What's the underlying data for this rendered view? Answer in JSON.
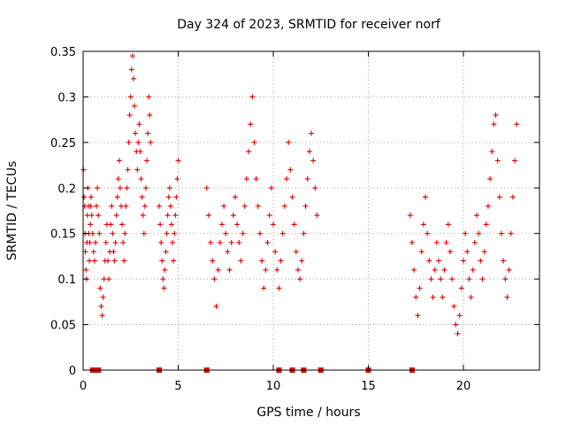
{
  "chart_data": {
    "type": "scatter",
    "title": "Day 324 of 2023, SRMTID for receiver norf",
    "xlabel": "GPS time / hours",
    "ylabel": "SRMTID / TECUs",
    "xlim": [
      0,
      24
    ],
    "ylim": [
      0,
      0.35
    ],
    "xticks": [
      0,
      5,
      10,
      15,
      20
    ],
    "xtick_labels": [
      "0",
      "5",
      "10",
      "15",
      "20"
    ],
    "yticks": [
      0,
      0.05,
      0.1,
      0.15,
      0.2,
      0.25,
      0.3,
      0.35
    ],
    "ytick_labels": [
      "0",
      "0.05",
      "0.1",
      "0.15",
      "0.2",
      "0.25",
      "0.3",
      "0.35"
    ],
    "grid": true,
    "marker": "+",
    "color": "#e00000",
    "series": [
      {
        "x": [
          0.02,
          0.05,
          0.08,
          0.1,
          0.12,
          0.15,
          0.18,
          0.2,
          0.22,
          0.25,
          0.28,
          0.3,
          0.33,
          0.35,
          0.38,
          0.4,
          0.42,
          0.45,
          0.5,
          0.55,
          0.6,
          0.65,
          0.7,
          0.75,
          0.8,
          0.85,
          0.9,
          0.95,
          1.0,
          1.05,
          1.1,
          1.15,
          1.2,
          1.25,
          1.3,
          1.35,
          1.4,
          1.45,
          1.5,
          1.55,
          1.6,
          1.65,
          1.7,
          1.75,
          1.8,
          1.85,
          1.9,
          1.95,
          2.0,
          2.05,
          2.1,
          2.15,
          2.2,
          2.25,
          2.3,
          2.35,
          2.4,
          2.45,
          2.5,
          2.55,
          2.6,
          2.65,
          2.7,
          2.75,
          2.8,
          2.85,
          2.9,
          2.95,
          3.0,
          3.05,
          3.1,
          3.15,
          3.2,
          3.25,
          3.3,
          3.35,
          3.4,
          3.45,
          3.5,
          3.55
        ],
        "y": [
          0.22,
          0.19,
          0.18,
          0.15,
          0.13,
          0.11,
          0.1,
          0.14,
          0.17,
          0.2,
          0.18,
          0.15,
          0.12,
          0.14,
          0.16,
          0.18,
          0.19,
          0.17,
          0.15,
          0.13,
          0.12,
          0.14,
          0.18,
          0.2,
          0.17,
          0.15,
          0.09,
          0.07,
          0.06,
          0.08,
          0.1,
          0.12,
          0.14,
          0.16,
          0.12,
          0.1,
          0.13,
          0.16,
          0.18,
          0.15,
          0.13,
          0.12,
          0.14,
          0.17,
          0.19,
          0.21,
          0.23,
          0.2,
          0.18,
          0.16,
          0.14,
          0.12,
          0.15,
          0.18,
          0.2,
          0.22,
          0.25,
          0.28,
          0.3,
          0.33,
          0.345,
          0.32,
          0.29,
          0.26,
          0.24,
          0.22,
          0.25,
          0.27,
          0.24,
          0.21,
          0.19,
          0.17,
          0.15,
          0.18,
          0.2,
          0.23,
          0.26,
          0.3,
          0.28,
          0.25
        ]
      },
      {
        "x": [
          4.0,
          4.05,
          4.1,
          4.15,
          4.2,
          4.25,
          4.3,
          4.35,
          4.4,
          4.45,
          4.5,
          4.55,
          4.6,
          4.65,
          4.7,
          4.75,
          4.8,
          4.85,
          4.9,
          4.95,
          5.0
        ],
        "y": [
          0.18,
          0.16,
          0.14,
          0.12,
          0.1,
          0.09,
          0.11,
          0.13,
          0.15,
          0.17,
          0.19,
          0.2,
          0.18,
          0.16,
          0.14,
          0.12,
          0.15,
          0.17,
          0.19,
          0.21,
          0.23
        ]
      },
      {
        "x": [
          6.5,
          6.6,
          6.7,
          6.8,
          6.9,
          7.0,
          7.1,
          7.2,
          7.3,
          7.4,
          7.5,
          7.6,
          7.7,
          7.8,
          7.9,
          8.0,
          8.1,
          8.2,
          8.3,
          8.4,
          8.5,
          8.6,
          8.7,
          8.8,
          8.9,
          9.0,
          9.1,
          9.2,
          9.3,
          9.4,
          9.5,
          9.6,
          9.7,
          9.8,
          9.9,
          10.0,
          10.1,
          10.2,
          10.3,
          10.4,
          10.5,
          10.6,
          10.7,
          10.8,
          10.9,
          11.0,
          11.1,
          11.2,
          11.3,
          11.4,
          11.5,
          11.6,
          11.7,
          11.8,
          11.9,
          12.0,
          12.1,
          12.2,
          12.3
        ],
        "y": [
          0.2,
          0.17,
          0.14,
          0.12,
          0.1,
          0.07,
          0.11,
          0.14,
          0.16,
          0.18,
          0.15,
          0.13,
          0.11,
          0.14,
          0.17,
          0.19,
          0.16,
          0.14,
          0.12,
          0.15,
          0.18,
          0.21,
          0.24,
          0.27,
          0.3,
          0.25,
          0.21,
          0.18,
          0.15,
          0.12,
          0.09,
          0.11,
          0.14,
          0.17,
          0.2,
          0.16,
          0.13,
          0.11,
          0.09,
          0.12,
          0.15,
          0.18,
          0.21,
          0.25,
          0.22,
          0.19,
          0.16,
          0.13,
          0.11,
          0.1,
          0.12,
          0.15,
          0.18,
          0.21,
          0.24,
          0.26,
          0.23,
          0.2,
          0.17
        ]
      },
      {
        "x": [
          17.2,
          17.3,
          17.4,
          17.5,
          17.6,
          17.7,
          17.8,
          17.9,
          18.0,
          18.1,
          18.2,
          18.3,
          18.4,
          18.5,
          18.6,
          18.7,
          18.8,
          18.9,
          19.0,
          19.1,
          19.2,
          19.3,
          19.4,
          19.5,
          19.6,
          19.7,
          19.8,
          19.9,
          20.0,
          20.1,
          20.2,
          20.3,
          20.4,
          20.5,
          20.6,
          20.7,
          20.8,
          20.9,
          21.0,
          21.1,
          21.2,
          21.3,
          21.4,
          21.5,
          21.6,
          21.7,
          21.8,
          21.9,
          22.0,
          22.1,
          22.2,
          22.3,
          22.4,
          22.5,
          22.6,
          22.7,
          22.8
        ],
        "y": [
          0.17,
          0.14,
          0.11,
          0.08,
          0.06,
          0.09,
          0.13,
          0.16,
          0.19,
          0.15,
          0.12,
          0.1,
          0.08,
          0.11,
          0.14,
          0.12,
          0.1,
          0.08,
          0.11,
          0.14,
          0.16,
          0.13,
          0.1,
          0.07,
          0.05,
          0.04,
          0.06,
          0.09,
          0.12,
          0.15,
          0.13,
          0.1,
          0.08,
          0.11,
          0.14,
          0.17,
          0.15,
          0.12,
          0.1,
          0.13,
          0.16,
          0.18,
          0.21,
          0.24,
          0.27,
          0.28,
          0.23,
          0.19,
          0.15,
          0.12,
          0.1,
          0.08,
          0.11,
          0.15,
          0.19,
          0.23,
          0.27
        ]
      }
    ],
    "zero_markers_x": [
      0.5,
      0.6,
      0.7,
      0.8,
      4.0,
      6.5,
      10.3,
      11.0,
      11.6,
      12.5,
      15.0,
      17.3
    ]
  }
}
